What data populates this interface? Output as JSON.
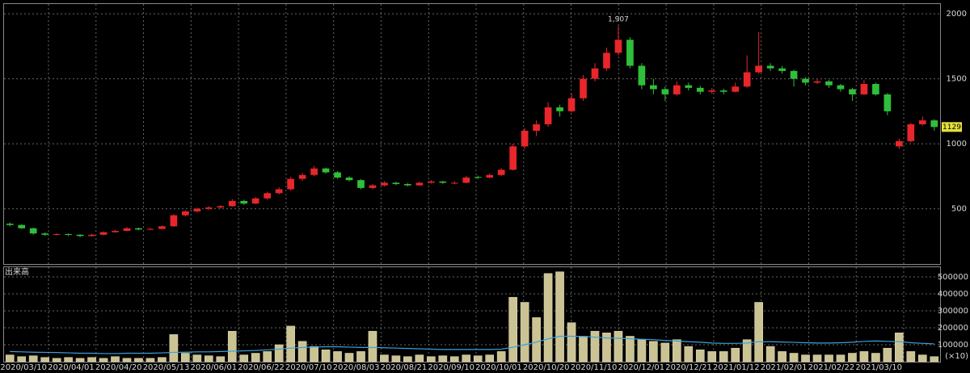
{
  "chart_data": [
    {
      "type": "candlestick",
      "up_color": "#e8262b",
      "down_color": "#2fbf3a",
      "ylim": [
        75,
        2075
      ],
      "yticks": [
        500,
        1000,
        1500,
        2000
      ],
      "grid": true,
      "annotation": {
        "label": "1,907",
        "value": 1907
      },
      "last_price": 1129,
      "last_price_color": "#e6e03a",
      "ohlc": [
        [
          385,
          395,
          365,
          375
        ],
        [
          375,
          380,
          345,
          350
        ],
        [
          350,
          355,
          300,
          310
        ],
        [
          310,
          318,
          292,
          300
        ],
        [
          300,
          312,
          295,
          305
        ],
        [
          305,
          310,
          290,
          300
        ],
        [
          300,
          305,
          282,
          290
        ],
        [
          290,
          308,
          286,
          300
        ],
        [
          300,
          325,
          296,
          320
        ],
        [
          320,
          338,
          315,
          330
        ],
        [
          330,
          358,
          326,
          350
        ],
        [
          350,
          355,
          335,
          340
        ],
        [
          340,
          352,
          334,
          345
        ],
        [
          345,
          372,
          340,
          365
        ],
        [
          365,
          458,
          360,
          450
        ],
        [
          450,
          488,
          440,
          480
        ],
        [
          480,
          508,
          472,
          500
        ],
        [
          500,
          520,
          492,
          510
        ],
        [
          510,
          528,
          500,
          520
        ],
        [
          520,
          575,
          515,
          560
        ],
        [
          560,
          570,
          530,
          540
        ],
        [
          540,
          590,
          535,
          580
        ],
        [
          580,
          632,
          570,
          620
        ],
        [
          620,
          665,
          610,
          650
        ],
        [
          650,
          745,
          640,
          730
        ],
        [
          730,
          775,
          715,
          760
        ],
        [
          760,
          830,
          750,
          810
        ],
        [
          810,
          815,
          770,
          780
        ],
        [
          780,
          790,
          730,
          740
        ],
        [
          740,
          750,
          710,
          720
        ],
        [
          720,
          728,
          650,
          660
        ],
        [
          660,
          690,
          650,
          680
        ],
        [
          680,
          712,
          672,
          700
        ],
        [
          700,
          708,
          682,
          690
        ],
        [
          690,
          698,
          672,
          680
        ],
        [
          680,
          710,
          676,
          700
        ],
        [
          700,
          720,
          694,
          710
        ],
        [
          710,
          715,
          692,
          700
        ],
        [
          695,
          712,
          688,
          700
        ],
        [
          700,
          752,
          696,
          740
        ],
        [
          745,
          755,
          728,
          740
        ],
        [
          740,
          770,
          735,
          760
        ],
        [
          760,
          812,
          752,
          800
        ],
        [
          800,
          1000,
          795,
          980
        ],
        [
          980,
          1120,
          960,
          1100
        ],
        [
          1100,
          1180,
          1060,
          1150
        ],
        [
          1150,
          1320,
          1130,
          1280
        ],
        [
          1280,
          1300,
          1210,
          1250
        ],
        [
          1250,
          1390,
          1240,
          1350
        ],
        [
          1350,
          1530,
          1330,
          1500
        ],
        [
          1500,
          1620,
          1480,
          1580
        ],
        [
          1580,
          1740,
          1560,
          1700
        ],
        [
          1700,
          1907,
          1680,
          1800
        ],
        [
          1800,
          1820,
          1580,
          1600
        ],
        [
          1600,
          1620,
          1420,
          1450
        ],
        [
          1450,
          1500,
          1380,
          1420
        ],
        [
          1420,
          1440,
          1330,
          1380
        ],
        [
          1380,
          1480,
          1370,
          1450
        ],
        [
          1450,
          1470,
          1410,
          1430
        ],
        [
          1430,
          1445,
          1380,
          1400
        ],
        [
          1400,
          1430,
          1385,
          1410
        ],
        [
          1410,
          1425,
          1380,
          1400
        ],
        [
          1400,
          1470,
          1395,
          1440
        ],
        [
          1440,
          1680,
          1430,
          1550
        ],
        [
          1550,
          1860,
          1540,
          1600
        ],
        [
          1600,
          1620,
          1560,
          1580
        ],
        [
          1580,
          1600,
          1540,
          1560
        ],
        [
          1560,
          1570,
          1440,
          1500
        ],
        [
          1500,
          1510,
          1450,
          1470
        ],
        [
          1470,
          1500,
          1460,
          1480
        ],
        [
          1480,
          1490,
          1430,
          1450
        ],
        [
          1450,
          1460,
          1400,
          1420
        ],
        [
          1420,
          1430,
          1330,
          1380
        ],
        [
          1380,
          1490,
          1375,
          1460
        ],
        [
          1460,
          1470,
          1370,
          1380
        ],
        [
          1380,
          1390,
          1220,
          1250
        ],
        [
          980,
          1040,
          960,
          1020
        ],
        [
          1020,
          1160,
          1010,
          1150
        ],
        [
          1150,
          1210,
          1140,
          1180
        ],
        [
          1180,
          1190,
          1100,
          1129
        ]
      ]
    },
    {
      "type": "bar",
      "title": "出来高",
      "unit_label": "(×10)",
      "color": "#cbc394",
      "ylim": [
        0,
        557000
      ],
      "yticks": [
        100000,
        200000,
        300000,
        400000,
        500000
      ],
      "grid": true,
      "xticks": [
        "2020/03/10",
        "2020/04/01",
        "2020/04/20",
        "2020/05/13",
        "2020/06/01",
        "2020/06/22",
        "2020/07/10",
        "2020/08/03",
        "2020/08/21",
        "2020/09/10",
        "2020/10/01",
        "2020/10/20",
        "2020/11/10",
        "2020/12/01",
        "2020/12/21",
        "2021/01/12",
        "2021/02/01",
        "2021/02/22",
        "2021/03/10"
      ],
      "values": [
        40000,
        30000,
        35000,
        25000,
        20000,
        25000,
        20000,
        25000,
        20000,
        30000,
        20000,
        20000,
        20000,
        25000,
        160000,
        50000,
        40000,
        35000,
        30000,
        180000,
        40000,
        50000,
        60000,
        100000,
        210000,
        120000,
        90000,
        70000,
        60000,
        50000,
        60000,
        180000,
        40000,
        35000,
        30000,
        40000,
        30000,
        35000,
        30000,
        40000,
        35000,
        40000,
        60000,
        380000,
        350000,
        260000,
        520000,
        530000,
        230000,
        150000,
        180000,
        170000,
        180000,
        150000,
        130000,
        120000,
        110000,
        130000,
        90000,
        70000,
        60000,
        60000,
        80000,
        130000,
        350000,
        90000,
        60000,
        50000,
        40000,
        40000,
        40000,
        40000,
        50000,
        60000,
        50000,
        80000,
        170000,
        60000,
        40000,
        30000
      ],
      "ma": {
        "color": "#3aa2dc",
        "values": [
          60000,
          58000,
          56000,
          55000,
          54000,
          52000,
          50000,
          50000,
          48000,
          48000,
          50000,
          50000,
          50000,
          52000,
          55000,
          56000,
          58000,
          58000,
          60000,
          62000,
          64000,
          66000,
          70000,
          74000,
          80000,
          84000,
          86000,
          88000,
          88000,
          86000,
          84000,
          84000,
          82000,
          80000,
          78000,
          76000,
          74000,
          72000,
          72000,
          72000,
          72000,
          72000,
          74000,
          85000,
          100000,
          115000,
          135000,
          150000,
          150000,
          148000,
          145000,
          140000,
          138000,
          135000,
          132000,
          130000,
          125000,
          122000,
          118000,
          115000,
          110000,
          108000,
          108000,
          110000,
          118000,
          118000,
          116000,
          114000,
          112000,
          110000,
          110000,
          112000,
          115000,
          120000,
          122000,
          120000,
          118000,
          112000,
          108000,
          105000
        ]
      }
    }
  ]
}
